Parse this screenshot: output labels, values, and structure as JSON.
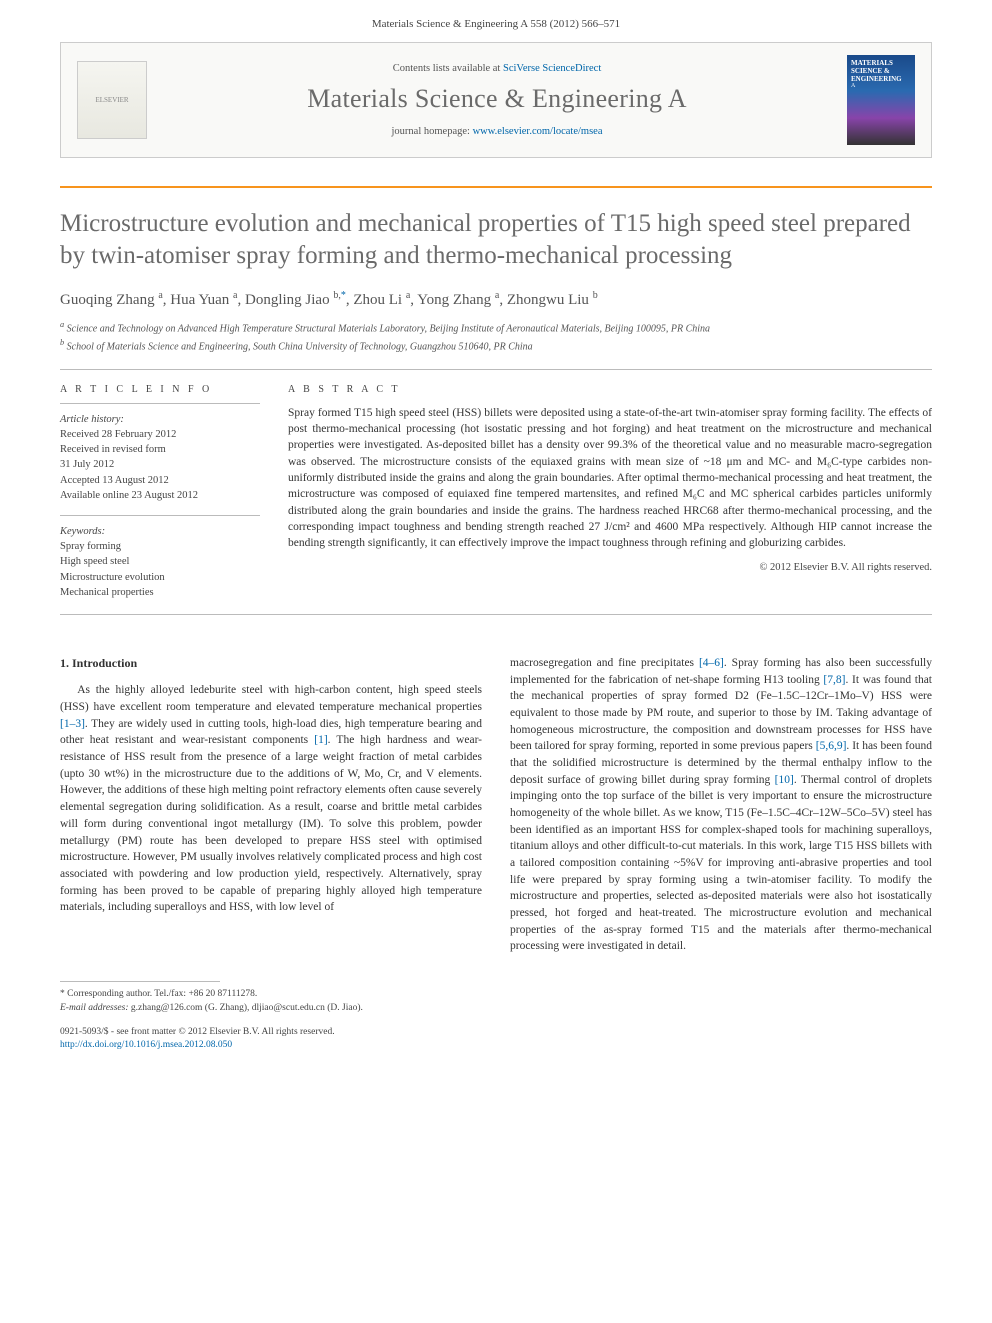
{
  "topbar": {
    "citation": "Materials Science & Engineering A 558 (2012) 566–571",
    "contents_prefix": "Contents lists available at ",
    "contents_link": "SciVerse ScienceDirect",
    "journal_name": "Materials Science & Engineering A",
    "homepage_prefix": "journal homepage: ",
    "homepage_link": "www.elsevier.com/locate/msea",
    "elsevier_label": "ELSEVIER",
    "cover_label1": "MATERIALS SCIENCE & ENGINEERING",
    "cover_label2": "A"
  },
  "title": "Microstructure evolution and mechanical properties of T15 high speed steel prepared by twin-atomiser spray forming and thermo-mechanical processing",
  "authors_html": "Guoqing Zhang <sup>a</sup>, Hua Yuan <sup>a</sup>, Dongling Jiao <sup>b,<span class='corr'>*</span></sup>, Zhou Li <sup>a</sup>, Yong Zhang <sup>a</sup>, Zhongwu Liu <sup>b</sup>",
  "affiliations": {
    "a": "Science and Technology on Advanced High Temperature Structural Materials Laboratory, Beijing Institute of Aeronautical Materials, Beijing 100095, PR China",
    "b": "School of Materials Science and Engineering, South China University of Technology, Guangzhou 510640, PR China"
  },
  "article_info": {
    "head": "A R T I C L E  I N F O",
    "history_label": "Article history:",
    "received": "Received 28 February 2012",
    "revised1": "Received in revised form",
    "revised2": "31 July 2012",
    "accepted": "Accepted 13 August 2012",
    "online": "Available online 23 August 2012",
    "keywords_label": "Keywords:",
    "kw1": "Spray forming",
    "kw2": "High speed steel",
    "kw3": "Microstructure evolution",
    "kw4": "Mechanical properties"
  },
  "abstract": {
    "head": "A B S T R A C T",
    "text": "Spray formed T15 high speed steel (HSS) billets were deposited using a state-of-the-art twin-atomiser spray forming facility. The effects of post thermo-mechanical processing (hot isostatic pressing and hot forging) and heat treatment on the microstructure and mechanical properties were investigated. As-deposited billet has a density over 99.3% of the theoretical value and no measurable macro-segregation was observed. The microstructure consists of the equiaxed grains with mean size of ~18 μm and MC- and M₆C-type carbides non-uniformly distributed inside the grains and along the grain boundaries. After optimal thermo-mechanical processing and heat treatment, the microstructure was composed of equiaxed fine tempered martensites, and refined M₆C and MC spherical carbides particles uniformly distributed along the grain boundaries and inside the grains. The hardness reached HRC68 after thermo-mechanical processing, and the corresponding impact toughness and bending strength reached 27 J/cm² and 4600 MPa respectively. Although HIP cannot increase the bending strength significantly, it can effectively improve the impact toughness through refining and globurizing carbides.",
    "copyright": "© 2012 Elsevier B.V. All rights reserved."
  },
  "intro": {
    "head": "1. Introduction",
    "col1_a": "As the highly alloyed ledeburite steel with high-carbon content, high speed steels (HSS) have excellent room temperature and elevated temperature mechanical properties ",
    "ref1": "[1–3]",
    "col1_b": ". They are widely used in cutting tools, high-load dies, high temperature bearing and other heat resistant and wear-resistant components ",
    "ref2": "[1]",
    "col1_c": ". The high hardness and wear-resistance of HSS result from the presence of a large weight fraction of metal carbides (upto 30 wt%) in the microstructure due to the additions of W, Mo, Cr, and V elements. However, the additions of these high melting point refractory elements often cause severely elemental segregation during solidification. As a result, coarse and brittle metal carbides will form during conventional ingot metallurgy (IM). To solve this problem, powder metallurgy (PM) route has been developed to prepare HSS steel with optimised microstructure. However, PM usually involves relatively complicated process and high cost associated with powdering and low production yield, respectively. Alternatively, spray forming has been proved to be capable of preparing highly alloyed high temperature materials, including superalloys and HSS, with low level of",
    "col2_a": "macrosegregation and fine precipitates ",
    "ref3": "[4–6]",
    "col2_b": ". Spray forming has also been successfully implemented for the fabrication of net-shape forming H13 tooling ",
    "ref4": "[7,8]",
    "col2_c": ". It was found that the mechanical properties of spray formed D2 (Fe–1.5C–12Cr–1Mo–V) HSS were equivalent to those made by PM route, and superior to those by IM. Taking advantage of homogeneous microstructure, the composition and downstream processes for HSS have been tailored for spray forming, reported in some previous papers ",
    "ref5": "[5,6,9]",
    "col2_d": ". It has been found that the solidified microstructure is determined by the thermal enthalpy inflow to the deposit surface of growing billet during spray forming ",
    "ref6": "[10]",
    "col2_e": ". Thermal control of droplets impinging onto the top surface of the billet is very important to ensure the microstructure homogeneity of the whole billet. As we know, T15 (Fe–1.5C–4Cr–12W–5Co–5V) steel has been identified as an important HSS for complex-shaped tools for machining superalloys, titanium alloys and other difficult-to-cut materials. In this work, large T15 HSS billets with a tailored composition containing ~5%V for improving anti-abrasive properties and tool life were prepared by spray forming using a twin-atomiser facility. To modify the microstructure and properties, selected as-deposited materials were also hot isostatically pressed, hot forged and heat-treated. The microstructure evolution and mechanical properties of the as-spray formed T15 and the materials after thermo-mechanical processing were investigated in detail."
  },
  "footnotes": {
    "corr": "* Corresponding author. Tel./fax: +86 20 87111278.",
    "email_label": "E-mail addresses:",
    "email1": "g.zhang@126.com (G. Zhang),",
    "email2": "dljiao@scut.edu.cn (D. Jiao)."
  },
  "bottom": {
    "line1": "0921-5093/$ - see front matter © 2012 Elsevier B.V. All rights reserved.",
    "doi_label": "http://dx.doi.org/",
    "doi": "10.1016/j.msea.2012.08.050"
  }
}
